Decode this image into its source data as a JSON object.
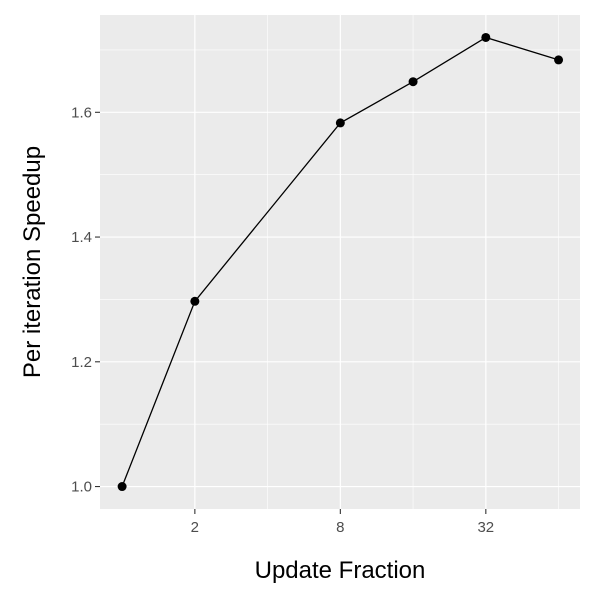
{
  "chart_data": {
    "type": "line",
    "xlabel": "Update Fraction",
    "ylabel": "Per iteration Speedup",
    "x_scale": "log2",
    "x": [
      1,
      2,
      4,
      8,
      16,
      32,
      64
    ],
    "y": [
      1.0,
      1.297,
      1.44,
      1.583,
      1.649,
      1.72,
      1.684
    ],
    "points_shown": [
      true,
      true,
      false,
      true,
      true,
      true,
      true
    ],
    "xticks": [
      2,
      8,
      32
    ],
    "xtick_labels": [
      "2",
      "8",
      "32"
    ],
    "yticks": [
      1.0,
      1.2,
      1.4,
      1.6
    ],
    "ytick_labels": [
      "1.0",
      "1.2",
      "1.4",
      "1.6"
    ],
    "xlim": [
      0.81,
      78.5
    ],
    "ylim": [
      0.964,
      1.756
    ],
    "grid": true,
    "colors": {
      "panel": "#ebebeb",
      "grid": "#ffffff",
      "line": "#000000",
      "point": "#000000"
    }
  }
}
